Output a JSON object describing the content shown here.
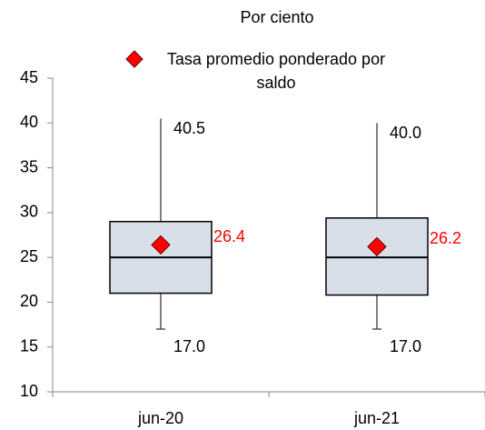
{
  "chart_data": {
    "type": "box",
    "subtitle": "Por ciento",
    "categories": [
      "jun-20",
      "jun-21"
    ],
    "boxes": [
      {
        "min": 17,
        "q1": 21,
        "median": 25,
        "q3": 29,
        "max": 40.5,
        "mean": 26.4,
        "value_labels": {
          "min": "17.0",
          "max": "40.5"
        }
      },
      {
        "min": 17,
        "q1": 20.8,
        "median": 25,
        "q3": 29.4,
        "max": 40,
        "mean": 26.2,
        "value_labels": {
          "min": "17.0",
          "max": "40.0"
        }
      }
    ],
    "box_color": "#d9dfe9",
    "mean_series": {
      "name": "Tasa promedio ponderado por saldo",
      "color": "#ff0000"
    },
    "ylim": [
      10,
      45
    ],
    "yticks": [
      10,
      15,
      20,
      25,
      30,
      35,
      40,
      45
    ]
  }
}
